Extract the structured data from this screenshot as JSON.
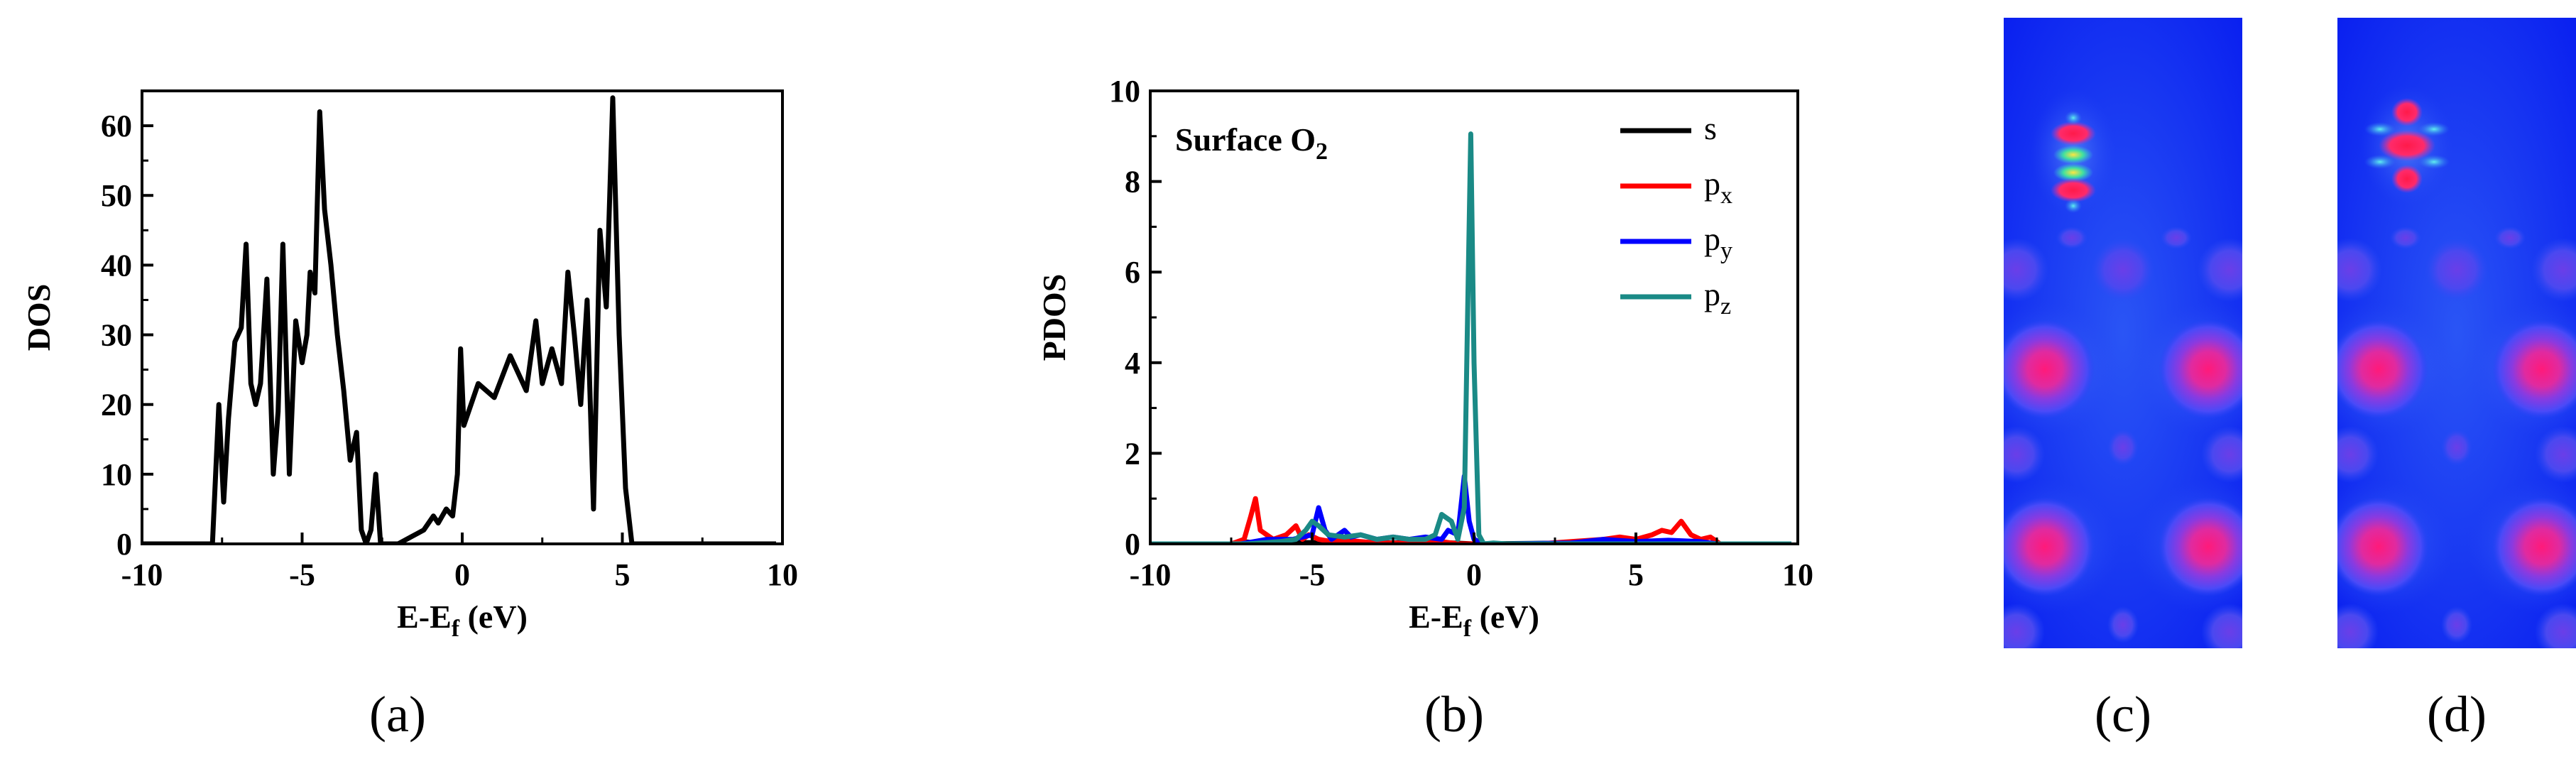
{
  "chart_data": [
    {
      "type": "line",
      "panel_label": "(a)",
      "xlabel": "E-E",
      "xlabel_sub": "f",
      "xlabel_unit": " (eV)",
      "ylabel": "DOS",
      "xlim": [
        -10,
        10
      ],
      "ylim": [
        0,
        65
      ],
      "xticks": [
        "-10",
        "-5",
        "0",
        "5",
        "10"
      ],
      "xtick_values": [
        -10,
        -5,
        0,
        5,
        10
      ],
      "yticks": [
        "0",
        "10",
        "20",
        "30",
        "40",
        "50",
        "60"
      ],
      "ytick_values": [
        0,
        10,
        20,
        30,
        40,
        50,
        60
      ],
      "series": [
        {
          "name": "DOS",
          "color": "#000000",
          "x": [
            -10,
            -7.8,
            -7.6,
            -7.45,
            -7.3,
            -7.1,
            -6.9,
            -6.75,
            -6.6,
            -6.45,
            -6.3,
            -6.1,
            -5.9,
            -5.75,
            -5.6,
            -5.4,
            -5.2,
            -5.0,
            -4.85,
            -4.75,
            -4.6,
            -4.45,
            -4.3,
            -4.1,
            -3.9,
            -3.7,
            -3.5,
            -3.3,
            -3.15,
            -3.0,
            -2.85,
            -2.7,
            -2.55,
            -2.4,
            -2.2,
            -2.0,
            -1.8,
            -1.6,
            -1.4,
            -1.2,
            -1.05,
            -0.9,
            -0.75,
            -0.5,
            -0.3,
            -0.15,
            -0.05,
            0.05,
            0.5,
            1.0,
            1.5,
            2.0,
            2.3,
            2.5,
            2.8,
            3.1,
            3.3,
            3.5,
            3.7,
            3.9,
            4.1,
            4.3,
            4.5,
            4.7,
            4.9,
            5.1,
            5.3,
            5.5,
            5.7,
            5.9,
            6.1,
            6.3,
            6.5,
            6.7,
            6.85,
            7.0,
            9.8
          ],
          "y": [
            0,
            0,
            20,
            6,
            18,
            29,
            31,
            43,
            23,
            20,
            23,
            38,
            10,
            19,
            43,
            10,
            32,
            26,
            30,
            39,
            36,
            62,
            48,
            40,
            30,
            22,
            12,
            16,
            2,
            0,
            2,
            10,
            0,
            0,
            0,
            0,
            0.5,
            1,
            1.5,
            2,
            3,
            4,
            3,
            5,
            4,
            10,
            28,
            17,
            23,
            21,
            27,
            22,
            32,
            23,
            28,
            23,
            39,
            30,
            20,
            35,
            5,
            45,
            34,
            64,
            30,
            8,
            0,
            0,
            0,
            0,
            0,
            0,
            0,
            0,
            0,
            0,
            0
          ]
        }
      ]
    },
    {
      "type": "line",
      "panel_label": "(b)",
      "annotation": "Surface O",
      "annotation_sub": "2",
      "xlabel": "E-E",
      "xlabel_sub": "f",
      "xlabel_unit": " (eV)",
      "ylabel": "PDOS",
      "xlim": [
        -10,
        10
      ],
      "ylim": [
        0,
        10
      ],
      "xticks": [
        "-10",
        "-5",
        "0",
        "5",
        "10"
      ],
      "xtick_values": [
        -10,
        -5,
        0,
        5,
        10
      ],
      "yticks": [
        "0",
        "2",
        "4",
        "6",
        "8",
        "10"
      ],
      "ytick_values": [
        0,
        2,
        4,
        6,
        8,
        10
      ],
      "legend_position": "top-right",
      "series": [
        {
          "name": "s",
          "sub": "",
          "color": "#000000",
          "x": [
            -10,
            -7.2,
            -7.0,
            -6.8,
            -5.0,
            -3.0,
            -1.0,
            0.0,
            3.0,
            4.5,
            6.0,
            7.5,
            9.8
          ],
          "y": [
            0,
            0,
            0.04,
            0.02,
            0.03,
            0.02,
            0.03,
            0.0,
            0.02,
            0.04,
            0.02,
            0.0,
            0
          ]
        },
        {
          "name": "p",
          "sub": "x",
          "color": "#ff0000",
          "x": [
            -10,
            -7.5,
            -7.1,
            -6.9,
            -6.75,
            -6.6,
            -6.2,
            -5.8,
            -5.5,
            -5.3,
            -5.1,
            -4.8,
            -4.4,
            -4.0,
            -3.5,
            -3.0,
            -2.0,
            -1.0,
            -0.5,
            0.0,
            0.4,
            1.0,
            2.0,
            3.0,
            4.0,
            4.5,
            5.0,
            5.5,
            5.8,
            6.1,
            6.4,
            6.7,
            7.0,
            7.3,
            7.6,
            9.8
          ],
          "y": [
            0,
            0,
            0.1,
            0.6,
            1.0,
            0.3,
            0.1,
            0.2,
            0.4,
            0.1,
            0.2,
            0.1,
            0.05,
            0.08,
            0.05,
            0.02,
            0.02,
            0.05,
            0.0,
            0.0,
            0.0,
            0.0,
            0.0,
            0.05,
            0.1,
            0.15,
            0.1,
            0.2,
            0.3,
            0.25,
            0.5,
            0.2,
            0.1,
            0.15,
            0.0,
            0
          ]
        },
        {
          "name": "p",
          "sub": "y",
          "color": "#0000ff",
          "x": [
            -10,
            -7.2,
            -6.8,
            -6.4,
            -5.6,
            -5.0,
            -4.8,
            -4.6,
            -4.4,
            -4.2,
            -4.0,
            -3.8,
            -3.5,
            -3.0,
            -2.5,
            -2.0,
            -1.5,
            -1.0,
            -0.8,
            -0.5,
            -0.3,
            -0.15,
            0.0,
            0.3,
            1.0,
            3.0,
            4.0,
            5.0,
            6.0,
            7.0,
            7.5,
            9.8
          ],
          "y": [
            0,
            0,
            0.05,
            0.1,
            0.1,
            0.2,
            0.8,
            0.3,
            0.1,
            0.2,
            0.3,
            0.15,
            0.2,
            0.1,
            0.15,
            0.1,
            0.15,
            0.1,
            0.3,
            0.2,
            1.5,
            0.5,
            0.1,
            0.0,
            0.0,
            0.02,
            0.1,
            0.05,
            0.08,
            0.05,
            0.0,
            0
          ]
        },
        {
          "name": "p",
          "sub": "z",
          "color": "#1a8a86",
          "x": [
            -10,
            -7.0,
            -6.0,
            -5.5,
            -5.2,
            -5.0,
            -4.8,
            -4.5,
            -4.0,
            -3.5,
            -3.0,
            -2.5,
            -2.0,
            -1.5,
            -1.2,
            -1.0,
            -0.9,
            -0.7,
            -0.5,
            -0.3,
            -0.2,
            -0.1,
            0.0,
            0.15,
            0.3,
            0.6,
            1.0,
            3.0,
            6.0,
            9.8
          ],
          "y": [
            0,
            0,
            0.05,
            0.1,
            0.3,
            0.5,
            0.4,
            0.2,
            0.15,
            0.2,
            0.1,
            0.15,
            0.1,
            0.1,
            0.2,
            0.65,
            0.6,
            0.5,
            0.1,
            0.8,
            5.0,
            9.05,
            4.0,
            0.2,
            0.0,
            0.02,
            0.0,
            0.0,
            0.0,
            0
          ]
        }
      ]
    }
  ],
  "images": {
    "panel_c_label": "(c)",
    "panel_d_label": "(d)",
    "colors": {
      "background": "#0a20f0",
      "charge_high": "#ff1a7a",
      "charge_mid": "#8a3ae0",
      "charge_low": "#3060f5"
    }
  }
}
